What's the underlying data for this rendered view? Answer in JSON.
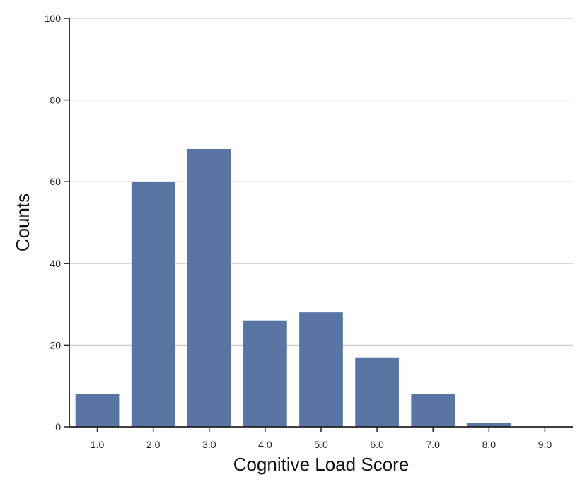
{
  "chart_data": {
    "type": "bar",
    "categories": [
      "1.0",
      "2.0",
      "3.0",
      "4.0",
      "5.0",
      "6.0",
      "7.0",
      "8.0",
      "9.0"
    ],
    "values": [
      8,
      60,
      68,
      26,
      28,
      17,
      8,
      1,
      0
    ],
    "xlabel": "Cognitive Load Score",
    "ylabel": "Counts",
    "ylim": [
      0,
      100
    ],
    "yticks": [
      0,
      20,
      40,
      60,
      80,
      100
    ],
    "grid": "horizontal",
    "bar_color": "#5975a4",
    "grid_color": "#cccccc",
    "axis_color": "#222222"
  }
}
